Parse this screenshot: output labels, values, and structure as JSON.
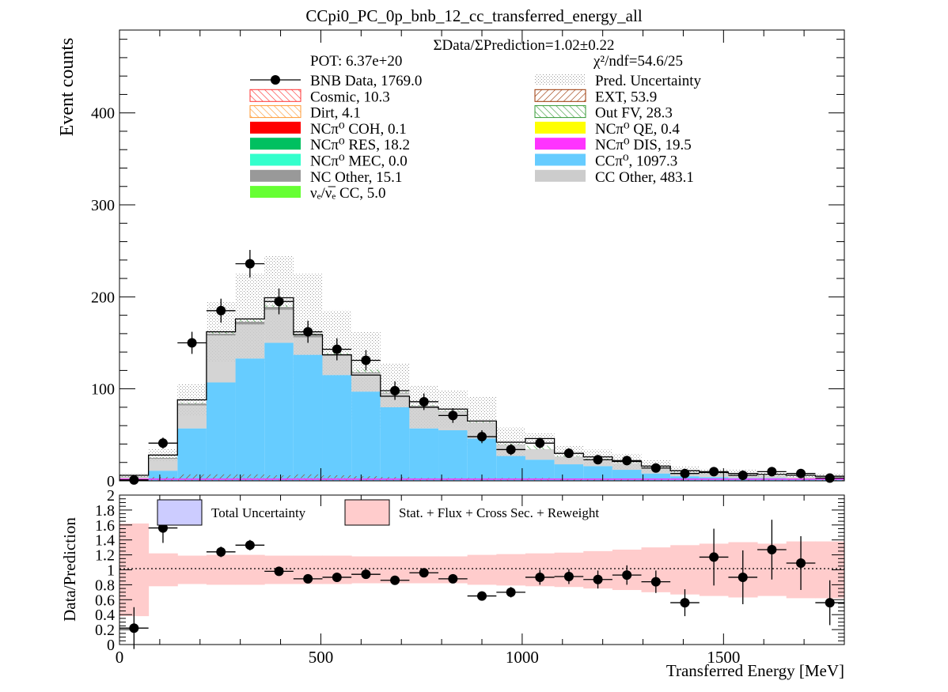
{
  "title": "CCpi0_PC_0p_bnb_12_cc_transferred_energy_all",
  "info": {
    "ratio_text": "ΣData/ΣPrediction=1.02±0.22",
    "pot_text": "POT: 6.37e+20",
    "chi2_text": "χ²/ndf=54.6/25"
  },
  "legend": {
    "left": [
      {
        "label": "BNB Data, 1769.0",
        "style": "data"
      },
      {
        "label": "Cosmic, 10.3",
        "style": "hatch",
        "color": "#ff3333"
      },
      {
        "label": "Dirt, 4.1",
        "style": "hatch",
        "color": "#ff9933"
      },
      {
        "label": "NCπ⁰ COH,  0.1",
        "style": "fill",
        "color": "#ff0000"
      },
      {
        "label": "NCπ⁰ RES,  18.2",
        "style": "fill",
        "color": "#00c060"
      },
      {
        "label": "NCπ⁰ MEC,  0.0",
        "style": "fill",
        "color": "#33ffcc"
      },
      {
        "label": "NC Other, 15.1",
        "style": "fill",
        "color": "#999999"
      },
      {
        "label": "νₑ/ν̅ₑ CC, 5.0",
        "style": "fill",
        "color": "#66ff33"
      }
    ],
    "right": [
      {
        "label": "Pred. Uncertainty",
        "style": "dots"
      },
      {
        "label": "EXT, 53.9",
        "style": "hatch",
        "color": "#993300"
      },
      {
        "label": "Out FV, 28.3",
        "style": "hatch",
        "color": "#339933"
      },
      {
        "label": "NCπ⁰ QE,  0.4",
        "style": "fill",
        "color": "#ffff00"
      },
      {
        "label": "NCπ⁰ DIS,  19.5",
        "style": "fill",
        "color": "#ff33ff"
      },
      {
        "label": "CCπ⁰, 1097.3",
        "style": "fill",
        "color": "#66ccff"
      },
      {
        "label": "CC Other, 483.1",
        "style": "fill",
        "color": "#cccccc"
      }
    ]
  },
  "ratio_legend": {
    "total": "Total Uncertainty",
    "stat": "Stat. + Flux + Cross Sec. + Reweight",
    "total_color": "#ccccff",
    "stat_color": "#ffcccc"
  },
  "colors": {
    "ccpi0": "#66ccff",
    "cc_other": "#cccccc",
    "nc_other": "#999999",
    "outfv": "#339933",
    "cosmic": "#ff3333",
    "ext": "#993300",
    "dirt": "#ff9933",
    "ncres": "#00c060",
    "ncdis": "#ff33ff"
  },
  "chart_data": [
    {
      "type": "bar",
      "subtype": "stacked histogram with data points",
      "xlabel": "",
      "ylabel": "Event counts",
      "xlim": [
        0,
        1800
      ],
      "ylim": [
        0,
        490
      ],
      "yticks": [
        0,
        100,
        200,
        300,
        400
      ],
      "bin_edges": [
        0,
        72,
        144,
        216,
        288,
        360,
        432,
        504,
        576,
        648,
        720,
        792,
        864,
        936,
        1008,
        1080,
        1152,
        1224,
        1296,
        1368,
        1440,
        1512,
        1584,
        1656,
        1728,
        1800
      ],
      "series": [
        {
          "name": "CCπ⁰",
          "values": [
            2,
            11,
            57,
            107,
            133,
            150,
            137,
            115,
            97,
            80,
            57,
            55,
            46,
            27,
            23,
            18,
            16,
            12,
            8,
            5,
            4,
            3,
            3,
            2,
            2
          ]
        },
        {
          "name": "CC Other",
          "values": [
            2,
            13,
            25,
            51,
            37,
            36,
            19,
            21,
            20,
            15,
            24,
            20,
            17,
            12,
            11,
            8,
            7,
            7,
            6,
            4,
            4,
            3,
            2,
            2,
            2
          ]
        },
        {
          "name": "NC Other",
          "values": [
            0.5,
            1,
            2,
            2,
            3,
            3,
            2,
            1,
            1,
            0.7,
            0.5,
            0.4,
            0.3,
            0.3,
            0.2,
            0.2,
            0.1,
            0.1,
            0.1,
            0.1,
            0.1,
            0.1,
            0.1,
            0,
            0
          ]
        },
        {
          "name": "Out FV",
          "values": [
            0.2,
            0.5,
            1,
            2,
            2,
            2,
            2,
            2,
            3,
            1,
            1,
            1,
            1,
            1,
            4,
            1,
            1,
            0.5,
            0.5,
            0.5,
            0.5,
            0.5,
            0.5,
            0.3,
            0.3
          ]
        },
        {
          "name": "Cosmic",
          "values": [
            0.3,
            1,
            2,
            2,
            3,
            2,
            3,
            3,
            2,
            1,
            1,
            1,
            1,
            1,
            1,
            0.5,
            0.5,
            0.3,
            0.3,
            0.2,
            0.2,
            0.2,
            0.2,
            0.1,
            0.1
          ]
        },
        {
          "name": "EXT",
          "values": [
            1,
            3,
            5,
            5,
            4,
            4,
            4,
            3,
            3,
            3,
            2,
            2,
            2,
            2,
            2,
            2,
            1.5,
            1,
            1,
            1,
            1,
            1,
            1,
            1,
            1
          ]
        }
      ],
      "total_prediction": [
        6,
        28,
        88,
        162,
        176,
        199,
        159,
        137,
        115,
        92,
        80,
        78,
        65,
        42,
        46,
        30,
        26,
        21,
        16,
        11,
        9,
        8,
        7,
        6,
        5
      ],
      "uncertainty_upper": [
        8,
        35,
        105,
        195,
        225,
        245,
        225,
        185,
        162,
        128,
        104,
        98,
        92,
        58,
        52,
        38,
        34,
        29,
        23,
        16,
        13,
        12,
        10,
        9,
        8
      ],
      "data": {
        "name": "BNB Data",
        "x": [
          36,
          108,
          180,
          252,
          324,
          396,
          468,
          540,
          612,
          684,
          756,
          828,
          900,
          972,
          1044,
          1116,
          1188,
          1260,
          1332,
          1404,
          1476,
          1548,
          1620,
          1692,
          1764
        ],
        "y": [
          1,
          41,
          150,
          185,
          236,
          195,
          162,
          143,
          131,
          98,
          86,
          71,
          48,
          34,
          41,
          30,
          23,
          22,
          14,
          8,
          10,
          6,
          10,
          8,
          3
        ],
        "yerr": [
          1,
          6,
          12,
          13,
          15,
          14,
          12,
          12,
          11,
          10,
          9,
          8,
          7,
          6,
          6,
          5,
          5,
          5,
          4,
          3,
          3,
          2.5,
          3,
          3,
          2
        ]
      }
    },
    {
      "type": "scatter",
      "subtype": "ratio panel",
      "xlabel": "Transferred Energy [MeV]",
      "ylabel": "Data/Prediction",
      "xlim": [
        0,
        1800
      ],
      "ylim": [
        0,
        2
      ],
      "yticks": [
        "0",
        "0.2",
        "0.4",
        "0.6",
        "0.8",
        "1",
        "1.2",
        "1.4",
        "1.6",
        "1.8",
        "2"
      ],
      "xticks": [
        "0",
        "500",
        "1000",
        "1500"
      ],
      "reference_line": 1,
      "x": [
        36,
        108,
        252,
        324,
        396,
        468,
        540,
        612,
        684,
        756,
        828,
        900,
        972,
        1044,
        1116,
        1188,
        1260,
        1332,
        1404,
        1476,
        1548,
        1620,
        1692,
        1764
      ],
      "y": [
        0.22,
        1.56,
        1.24,
        1.33,
        0.98,
        0.88,
        0.9,
        0.94,
        0.86,
        0.96,
        0.88,
        0.65,
        0.7,
        0.9,
        0.91,
        0.87,
        0.93,
        0.84,
        0.56,
        1.17,
        0.9,
        1.27,
        1.09,
        0.56
      ],
      "yerr": [
        0.28,
        0.2,
        0.07,
        0.07,
        0.06,
        0.06,
        0.06,
        0.06,
        0.06,
        0.06,
        0.06,
        0.06,
        0.07,
        0.1,
        0.1,
        0.12,
        0.13,
        0.15,
        0.18,
        0.38,
        0.36,
        0.4,
        0.36,
        0.3
      ],
      "band_half_width": [
        0.62,
        0.22,
        0.19,
        0.2,
        0.2,
        0.19,
        0.19,
        0.19,
        0.18,
        0.18,
        0.18,
        0.18,
        0.2,
        0.21,
        0.22,
        0.23,
        0.25,
        0.27,
        0.3,
        0.33,
        0.35,
        0.37,
        0.35,
        0.38,
        0.38
      ]
    }
  ]
}
